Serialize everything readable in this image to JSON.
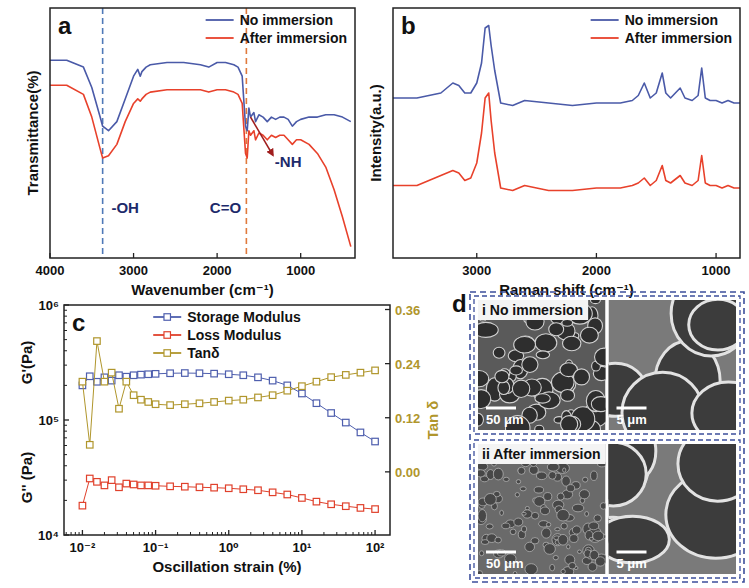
{
  "chart_data": [
    {
      "type": "line",
      "panel_label": "a",
      "xlabel": "Wavenumber (cm⁻¹)",
      "ylabel": "Transmittance(%)",
      "x": [
        4000,
        3800,
        3600,
        3500,
        3400,
        3370,
        3300,
        3200,
        3100,
        3000,
        2950,
        2920,
        2900,
        2850,
        2800,
        2600,
        2400,
        2200,
        2100,
        2000,
        1900,
        1800,
        1750,
        1700,
        1660,
        1640,
        1620,
        1600,
        1560,
        1540,
        1500,
        1450,
        1400,
        1350,
        1300,
        1250,
        1200,
        1150,
        1100,
        1050,
        1000,
        900,
        800,
        700,
        600,
        500,
        400
      ],
      "series": [
        {
          "name": "No immersion",
          "color": "#4a5aa8",
          "values": [
            87,
            87,
            84,
            75,
            62,
            58,
            56,
            60,
            70,
            80,
            83,
            80,
            82,
            84,
            85,
            86,
            86,
            85,
            84,
            86,
            86,
            85,
            84,
            80,
            58,
            56,
            66,
            62,
            64,
            60,
            63,
            62,
            60,
            62,
            61,
            62,
            62,
            61,
            58,
            60,
            61,
            62,
            62,
            63,
            63,
            62,
            60
          ]
        },
        {
          "name": "After immersion",
          "color": "#e8412b",
          "values": [
            76,
            76,
            72,
            62,
            48,
            44,
            45,
            50,
            60,
            68,
            70,
            69,
            70,
            72,
            73,
            74,
            74,
            74,
            73,
            74,
            74,
            73,
            72,
            68,
            46,
            44,
            56,
            54,
            56,
            52,
            55,
            54,
            52,
            54,
            53,
            54,
            54,
            52,
            50,
            52,
            52,
            50,
            46,
            40,
            30,
            18,
            5
          ]
        }
      ],
      "xlim": [
        4000,
        350
      ],
      "ylim": [
        0,
        110
      ],
      "xticks": [
        4000,
        3000,
        2000,
        1000
      ],
      "tick_labels": "x",
      "legend": "upper right",
      "grid": false,
      "vlines": [
        {
          "x": 3370,
          "color": "#4f79b8"
        },
        {
          "x": 1650,
          "color": "#e07a3c"
        }
      ],
      "annotations": [
        {
          "text": "-OH",
          "x": 3100,
          "y": 20
        },
        {
          "text": "C=O",
          "x": 1900,
          "y": 20
        },
        {
          "text": "-NH",
          "x": 1150,
          "y": 40,
          "arrow_from": [
            1600,
            62
          ]
        }
      ]
    },
    {
      "type": "line",
      "panel_label": "b",
      "xlabel": "Raman shift (cm⁻¹)",
      "ylabel": "Intensity(a.u.)",
      "x": [
        3700,
        3500,
        3400,
        3300,
        3200,
        3150,
        3100,
        3050,
        3000,
        2960,
        2930,
        2900,
        2880,
        2850,
        2800,
        2700,
        2600,
        2400,
        2200,
        2000,
        1800,
        1700,
        1650,
        1600,
        1550,
        1500,
        1450,
        1420,
        1380,
        1300,
        1260,
        1200,
        1150,
        1120,
        1090,
        1050,
        1000,
        950,
        900,
        850,
        800
      ],
      "series": [
        {
          "name": "No immersion",
          "color": "#4a5aa8",
          "values": [
            64,
            64,
            65,
            66,
            70,
            69,
            66,
            66,
            70,
            78,
            92,
            93,
            85,
            75,
            62,
            61,
            63,
            62,
            61,
            62,
            62,
            63,
            65,
            70,
            64,
            66,
            74,
            66,
            64,
            68,
            64,
            63,
            65,
            76,
            64,
            63,
            63,
            62,
            63,
            62,
            62
          ]
        },
        {
          "name": "After immersion",
          "color": "#e8412b",
          "values": [
            29,
            29,
            31,
            33,
            35,
            34,
            31,
            32,
            38,
            50,
            64,
            66,
            55,
            42,
            28,
            27,
            29,
            27,
            27,
            28,
            28,
            29,
            30,
            32,
            29,
            31,
            37,
            31,
            30,
            33,
            30,
            29,
            31,
            41,
            30,
            29,
            29,
            28,
            29,
            28,
            28
          ]
        }
      ],
      "xlim": [
        3700,
        800
      ],
      "ylim": [
        0,
        100
      ],
      "xticks": [
        3000,
        2000,
        1000
      ],
      "tick_labels": "x",
      "legend": "upper right",
      "grid": false
    },
    {
      "type": "line",
      "panel_label": "c",
      "xlabel": "Oscillation strain (%)",
      "ylabel": [
        "G'(Pa)",
        "G'' (Pa)"
      ],
      "y2label": "Tan δ",
      "x": [
        0.01,
        0.0126,
        0.0158,
        0.02,
        0.0251,
        0.0316,
        0.0398,
        0.0501,
        0.0631,
        0.0794,
        0.1,
        0.158,
        0.251,
        0.398,
        0.631,
        1,
        1.58,
        2.51,
        3.98,
        6.31,
        10,
        15.8,
        25.1,
        39.8,
        63.1,
        100
      ],
      "series": [
        {
          "name": "Storage Modulus",
          "color": "#4f5fae",
          "marker": "square",
          "values": [
            200000,
            240000,
            215000,
            235000,
            220000,
            245000,
            238000,
            245000,
            248000,
            250000,
            252000,
            255000,
            256000,
            255000,
            253000,
            250000,
            245000,
            235000,
            220000,
            200000,
            170000,
            140000,
            115000,
            95000,
            78000,
            65000
          ]
        },
        {
          "name": "Loss Modulus",
          "color": "#e0412c",
          "marker": "square",
          "values": [
            18000,
            31000,
            29000,
            27000,
            30000,
            26000,
            28000,
            27500,
            27000,
            27000,
            26800,
            26500,
            26300,
            26000,
            25800,
            25500,
            25000,
            24500,
            23500,
            22500,
            21000,
            19500,
            18500,
            17800,
            17200,
            16800
          ]
        },
        {
          "name": "Tanδ",
          "color": "#b0962c",
          "marker": "square",
          "axis": "y2",
          "values": [
            0.2,
            0.06,
            0.29,
            0.2,
            0.22,
            0.14,
            0.2,
            0.17,
            0.16,
            0.155,
            0.15,
            0.148,
            0.15,
            0.152,
            0.155,
            0.158,
            0.16,
            0.165,
            0.17,
            0.18,
            0.19,
            0.2,
            0.21,
            0.215,
            0.22,
            0.225
          ]
        }
      ],
      "xlim": [
        0.0056,
        160
      ],
      "ylim": [
        10000,
        1000000
      ],
      "y2lim": [
        -0.14,
        0.37
      ],
      "xticks": [
        {
          "value": 0.01,
          "label": "10⁻²"
        },
        {
          "value": 0.1,
          "label": "10⁻¹"
        },
        {
          "value": 1,
          "label": "10⁰"
        },
        {
          "value": 10,
          "label": "10¹"
        },
        {
          "value": 100,
          "label": "10²"
        }
      ],
      "yticks": [
        {
          "value": 10000,
          "label": "10⁴"
        },
        {
          "value": 100000,
          "label": "10⁵"
        },
        {
          "value": 1000000,
          "label": "10⁶"
        }
      ],
      "y2ticks": [
        {
          "value": 0,
          "label": "0.00"
        },
        0.12,
        0.24,
        0.36
      ],
      "log": true,
      "legend": "upper center",
      "grid": false
    },
    {
      "type": "image",
      "panel_label": "d",
      "panels": [
        {
          "label": "i No immersion",
          "scale_bars": [
            "50 μm",
            "5 μm"
          ]
        },
        {
          "label": "ii After immersion",
          "scale_bars": [
            "50 μm",
            "5 μm"
          ]
        }
      ]
    }
  ]
}
